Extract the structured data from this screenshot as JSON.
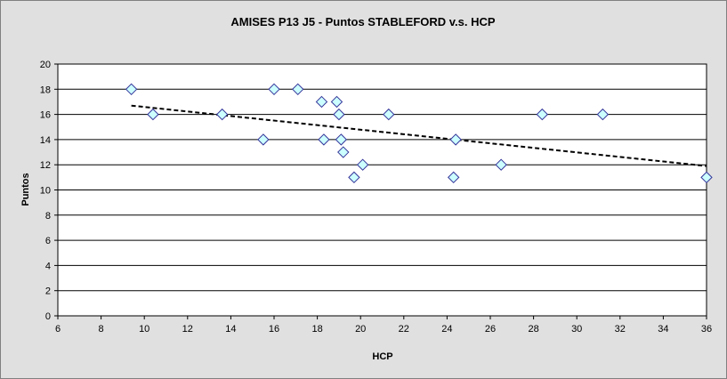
{
  "chart_data": {
    "type": "scatter",
    "title": "AMISES P13 J5 - Puntos STABLEFORD v.s. HCP",
    "xlabel": "HCP",
    "ylabel": "Puntos",
    "xlim": [
      6,
      36
    ],
    "ylim": [
      0,
      20
    ],
    "xticks": [
      6,
      8,
      10,
      12,
      14,
      16,
      18,
      20,
      22,
      24,
      26,
      28,
      30,
      32,
      34,
      36
    ],
    "yticks": [
      0,
      2,
      4,
      6,
      8,
      10,
      12,
      14,
      16,
      18,
      20
    ],
    "grid": "horizontal",
    "legend": "none",
    "marker": "diamond",
    "colors": {
      "marker_fill": "#ccffff",
      "marker_edge": "#333399",
      "background": "#e0e0e0",
      "plot_bg": "#ffffff",
      "trendline": "#000000"
    },
    "points": [
      {
        "x": 9.4,
        "y": 18
      },
      {
        "x": 10.4,
        "y": 16
      },
      {
        "x": 13.6,
        "y": 16
      },
      {
        "x": 15.5,
        "y": 14
      },
      {
        "x": 16.0,
        "y": 18
      },
      {
        "x": 17.1,
        "y": 18
      },
      {
        "x": 18.2,
        "y": 17
      },
      {
        "x": 18.3,
        "y": 14
      },
      {
        "x": 18.9,
        "y": 17
      },
      {
        "x": 19.0,
        "y": 16
      },
      {
        "x": 19.1,
        "y": 14
      },
      {
        "x": 19.2,
        "y": 13
      },
      {
        "x": 19.7,
        "y": 11
      },
      {
        "x": 20.1,
        "y": 12
      },
      {
        "x": 21.3,
        "y": 16
      },
      {
        "x": 24.3,
        "y": 11
      },
      {
        "x": 24.4,
        "y": 14
      },
      {
        "x": 26.5,
        "y": 12
      },
      {
        "x": 28.4,
        "y": 16
      },
      {
        "x": 31.2,
        "y": 16
      },
      {
        "x": 36.0,
        "y": 11
      }
    ],
    "trendline": {
      "type": "linear",
      "style": "dashed",
      "from": {
        "x": 9.4,
        "y": 16.7
      },
      "to": {
        "x": 36,
        "y": 11.9
      }
    }
  }
}
